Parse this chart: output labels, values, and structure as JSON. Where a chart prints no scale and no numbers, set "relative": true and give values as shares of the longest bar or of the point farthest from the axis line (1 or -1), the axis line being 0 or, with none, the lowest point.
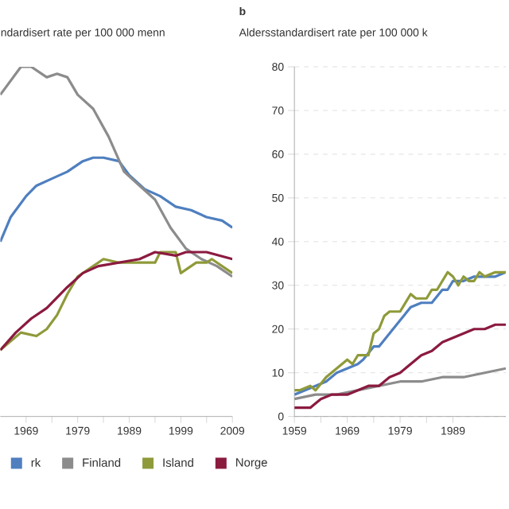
{
  "chart_data": [
    {
      "type": "line",
      "subtitle": "ndardisert rate per 100 000 menn",
      "relative": true,
      "xlim": [
        1964,
        2009
      ],
      "xticks": [
        1969,
        1979,
        1989,
        1999,
        2009
      ],
      "legend": "bottom",
      "series": [
        {
          "name": "rk",
          "color": "#4f7fbf",
          "x": [
            1964,
            1966,
            1969,
            1971,
            1974,
            1977,
            1980,
            1982,
            1984,
            1987,
            1989,
            1992,
            1995,
            1998,
            2001,
            2004,
            2007,
            2009
          ],
          "values": [
            0.5,
            0.57,
            0.63,
            0.66,
            0.68,
            0.7,
            0.73,
            0.74,
            0.74,
            0.73,
            0.69,
            0.65,
            0.63,
            0.6,
            0.59,
            0.57,
            0.56,
            0.54
          ]
        },
        {
          "name": "Finland",
          "color": "#8c8c8c",
          "x": [
            1964,
            1968,
            1970,
            1973,
            1975,
            1977,
            1979,
            1982,
            1985,
            1988,
            1991,
            1994,
            1997,
            2000,
            2003,
            2006,
            2009
          ],
          "values": [
            0.92,
            1.0,
            1.0,
            0.97,
            0.98,
            0.97,
            0.92,
            0.88,
            0.8,
            0.7,
            0.66,
            0.62,
            0.54,
            0.48,
            0.45,
            0.43,
            0.4
          ]
        },
        {
          "name": "Island",
          "color": "#8f9a3a",
          "x": [
            1964,
            1968,
            1971,
            1973,
            1975,
            1977,
            1979,
            1982,
            1984,
            1987,
            1991,
            1994,
            1995,
            1998,
            1999,
            2002,
            2004,
            2005,
            2009
          ],
          "values": [
            0.19,
            0.24,
            0.23,
            0.25,
            0.29,
            0.35,
            0.4,
            0.43,
            0.45,
            0.44,
            0.44,
            0.44,
            0.47,
            0.47,
            0.41,
            0.44,
            0.44,
            0.45,
            0.41
          ]
        },
        {
          "name": "Norge",
          "color": "#8b1a3f",
          "x": [
            1964,
            1967,
            1970,
            1973,
            1975,
            1977,
            1980,
            1983,
            1987,
            1991,
            1994,
            1998,
            2000,
            2004,
            2009
          ],
          "values": [
            0.19,
            0.24,
            0.28,
            0.31,
            0.34,
            0.37,
            0.41,
            0.43,
            0.44,
            0.45,
            0.47,
            0.46,
            0.47,
            0.47,
            0.45
          ]
        }
      ]
    },
    {
      "type": "line",
      "title": "b",
      "subtitle": "Aldersstandardisert rate per 100 000 k",
      "xlim": [
        1959,
        1999
      ],
      "xticks": [
        1959,
        1969,
        1979,
        1989
      ],
      "ylim": [
        0,
        80
      ],
      "yticks": [
        0,
        10,
        20,
        30,
        40,
        50,
        60,
        70,
        80
      ],
      "grid": "y",
      "series": [
        {
          "color": "#4f7fbf",
          "x": [
            1959,
            1961,
            1963,
            1965,
            1967,
            1969,
            1971,
            1972,
            1974,
            1975,
            1977,
            1979,
            1981,
            1983,
            1985,
            1987,
            1988,
            1989,
            1991,
            1993,
            1995,
            1997,
            1999
          ],
          "values": [
            5,
            6,
            7,
            8,
            10,
            11,
            12,
            13,
            16,
            16,
            19,
            22,
            25,
            26,
            26,
            29,
            29,
            31,
            31,
            32,
            32,
            32,
            33
          ]
        },
        {
          "color": "#8c8c8c",
          "x": [
            1959,
            1963,
            1967,
            1971,
            1975,
            1979,
            1983,
            1987,
            1991,
            1995,
            1999
          ],
          "values": [
            4,
            5,
            5,
            6,
            7,
            8,
            8,
            9,
            9,
            10,
            11
          ]
        },
        {
          "color": "#8f9a3a",
          "x": [
            1959,
            1960,
            1962,
            1963,
            1965,
            1967,
            1969,
            1970,
            1971,
            1972,
            1973,
            1974,
            1975,
            1976,
            1977,
            1978,
            1979,
            1980,
            1981,
            1982,
            1983,
            1984,
            1985,
            1986,
            1987,
            1988,
            1989,
            1990,
            1991,
            1992,
            1993,
            1994,
            1995,
            1997,
            1999
          ],
          "values": [
            6,
            6,
            7,
            6,
            9,
            11,
            13,
            12,
            14,
            14,
            14,
            19,
            20,
            23,
            24,
            24,
            24,
            26,
            28,
            27,
            27,
            27,
            29,
            29,
            31,
            33,
            32,
            30,
            32,
            31,
            31,
            33,
            32,
            33,
            33
          ]
        },
        {
          "color": "#8b1a3f",
          "x": [
            1959,
            1962,
            1964,
            1966,
            1969,
            1971,
            1973,
            1975,
            1977,
            1979,
            1981,
            1983,
            1985,
            1987,
            1989,
            1991,
            1993,
            1995,
            1997,
            1999
          ],
          "values": [
            2,
            2,
            4,
            5,
            5,
            6,
            7,
            7,
            9,
            10,
            12,
            14,
            15,
            17,
            18,
            19,
            20,
            20,
            21,
            21
          ]
        }
      ]
    }
  ]
}
